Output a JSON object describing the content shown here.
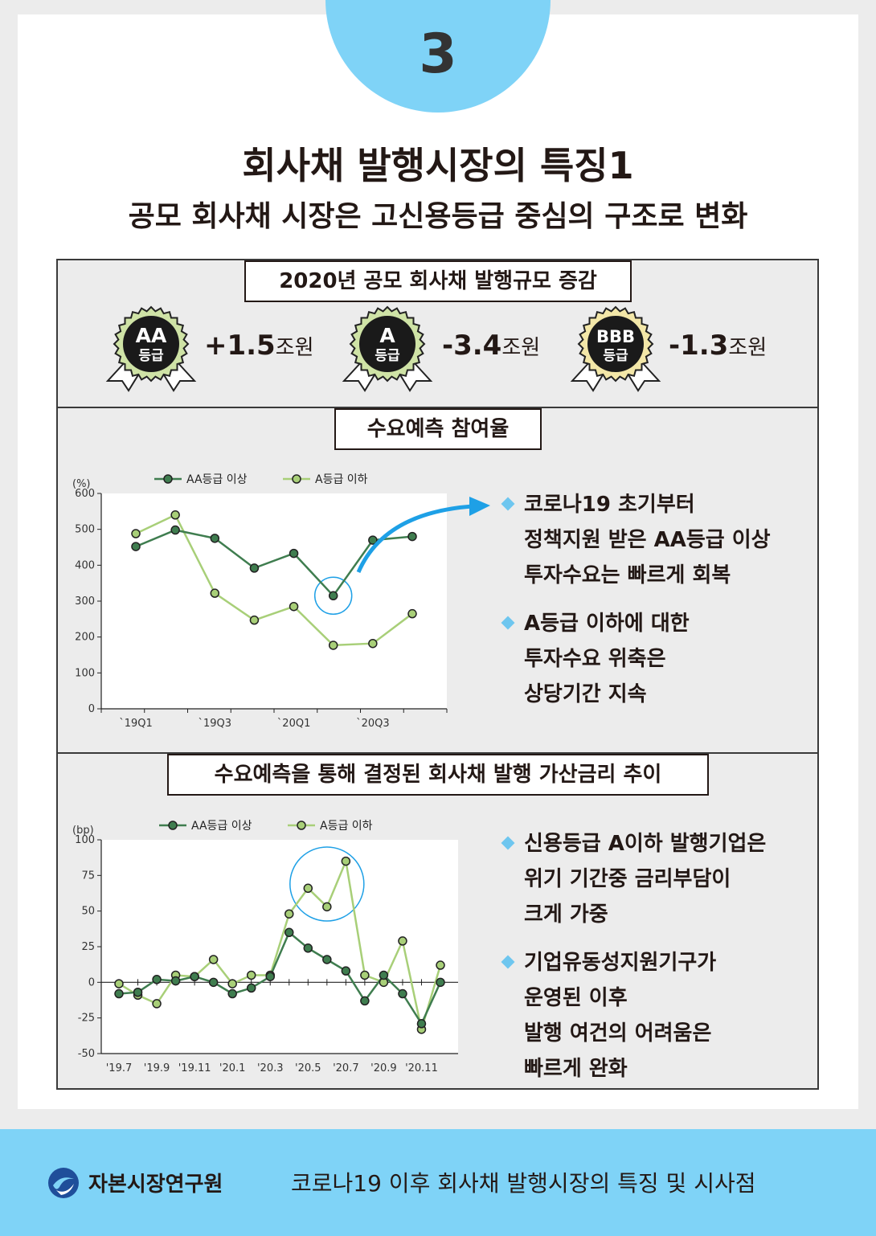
{
  "page": {
    "number": "3",
    "title": "회사채 발행시장의 특징1",
    "subtitle": "공모 회사채 시장은 고신용등급 중심의 구조로 변화"
  },
  "issuance": {
    "title": "2020년 공모 회사채 발행규모 증감",
    "badges": [
      {
        "top": "AA",
        "bottom": "등급",
        "value": "+1.5",
        "unit": "조원",
        "color": "#cfe3a6"
      },
      {
        "top": "A",
        "bottom": "등급",
        "value": "-3.4",
        "unit": "조원",
        "color": "#cfe3a6"
      },
      {
        "top": "BBB",
        "bottom": "등급",
        "value": "-1.3",
        "unit": "조원",
        "color": "#f3e7a8"
      }
    ]
  },
  "demand": {
    "title": "수요예측 참여율",
    "bullets": [
      {
        "lines": [
          "코로나19 초기부터",
          "정책지원 받은 AA등급 이상",
          "투자수요는 빠르게 회복"
        ]
      },
      {
        "lines": [
          "A등급 이하에 대한",
          "투자수요 위축은",
          "상당기간 지속"
        ]
      }
    ]
  },
  "spread": {
    "title": "수요예측을 통해 결정된 회사채 발행 가산금리 추이",
    "bullets": [
      {
        "lines": [
          "신용등급 A이하 발행기업은",
          "위기 기간중 금리부담이",
          "크게 가중"
        ]
      },
      {
        "lines": [
          "기업유동성지원기구가",
          "운영된 이후",
          "발행 여건의 어려움은",
          "빠르게 완화"
        ]
      }
    ]
  },
  "footer": {
    "org": "자본시장연구원",
    "report": "코로나19 이후 회사채 발행시장의 특징 및 시사점"
  },
  "chart_data": [
    {
      "type": "line",
      "unit_label": "(%)",
      "x": [
        "`19Q1",
        "`19Q2",
        "`19Q3",
        "`19Q4",
        "`20Q1",
        "`20Q2",
        "`20Q3",
        "`20Q4"
      ],
      "tick_labels": [
        "`19Q1",
        "`19Q3",
        "`20Q1",
        "`20Q3"
      ],
      "ylim": [
        0,
        600
      ],
      "yticks": [
        0,
        100,
        200,
        300,
        400,
        500,
        600
      ],
      "series": [
        {
          "name": "AA등급 이상",
          "color": "#3f7d4f",
          "values": [
            452,
            498,
            475,
            392,
            433,
            315,
            470,
            480
          ]
        },
        {
          "name": "A등급 이하",
          "color": "#a8cf78",
          "values": [
            488,
            540,
            322,
            247,
            285,
            177,
            182,
            265
          ]
        }
      ],
      "highlight_index": 5,
      "legend": "top"
    },
    {
      "type": "line",
      "unit_label": "(bp)",
      "x": [
        "'19.7",
        "'19.8",
        "'19.9",
        "'19.10",
        "'19.11",
        "'19.12",
        "'20.1",
        "'20.2",
        "'20.3",
        "'20.4",
        "'20.5",
        "'20.6",
        "'20.7",
        "'20.8",
        "'20.9",
        "'20.10",
        "'20.11",
        "'20.12"
      ],
      "tick_labels": [
        "'19.7",
        "'19.9",
        "'19.11",
        "'20.1",
        "'20.3",
        "'20.5",
        "'20.7",
        "'20.9",
        "'20.11"
      ],
      "ylim": [
        -50,
        100
      ],
      "yticks": [
        -50,
        -25,
        0,
        25,
        50,
        75,
        100
      ],
      "series": [
        {
          "name": "AA등급 이상",
          "color": "#3f7d4f",
          "values": [
            -8,
            -7,
            2,
            1,
            4,
            0,
            -8,
            -4,
            4,
            35,
            24,
            16,
            8,
            -13,
            5,
            -8,
            -29,
            0
          ]
        },
        {
          "name": "A등급 이하",
          "color": "#a8cf78",
          "values": [
            -1,
            -9,
            -15,
            5,
            4,
            16,
            -1,
            5,
            5,
            48,
            66,
            53,
            85,
            5,
            0,
            29,
            -33,
            12
          ]
        }
      ],
      "highlight_range": [
        10,
        12
      ],
      "legend": "top"
    }
  ]
}
